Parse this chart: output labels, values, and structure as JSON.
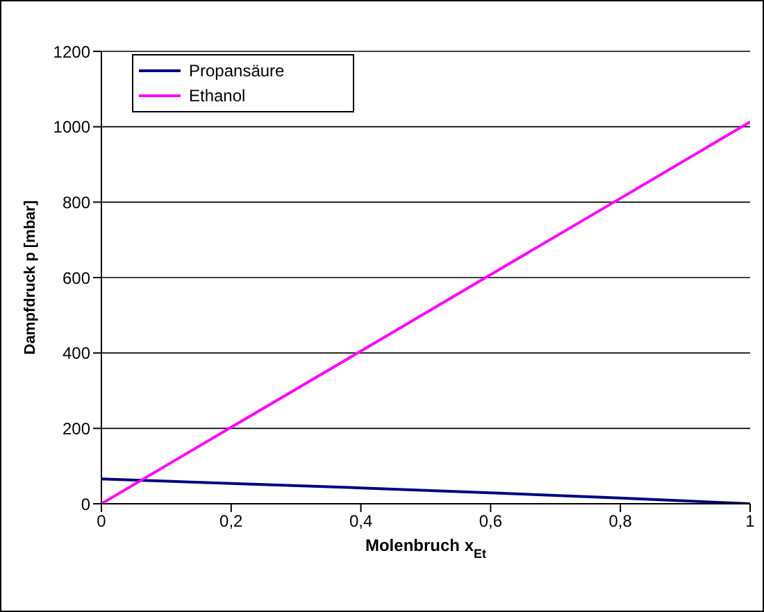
{
  "chart_data": {
    "type": "line",
    "xlabel": "Molenbruch x$_{Et}$",
    "ylabel": "Dampfdruck p [mbar]",
    "x": [
      0,
      0.2,
      0.4,
      0.6,
      0.8,
      1
    ],
    "series": [
      {
        "name": "Propansäure",
        "color": "#000080",
        "values": [
          66,
          54,
          42,
          29,
          15,
          0
        ]
      },
      {
        "name": "Ethanol",
        "color": "#ff00ff",
        "values": [
          0,
          203,
          405,
          608,
          810,
          1013
        ]
      }
    ],
    "xlim": [
      0,
      1
    ],
    "xticks": [
      0,
      {
        "value": 0.2,
        "label": "0,2"
      },
      {
        "value": 0.4,
        "label": "0,4"
      },
      {
        "value": 0.6,
        "label": "0,6"
      },
      {
        "value": 0.8,
        "label": "0,8"
      },
      1
    ],
    "ylim": [
      0,
      1200
    ],
    "yticks": [
      0,
      200,
      400,
      600,
      800,
      1000,
      1200
    ],
    "grid": "y",
    "legend": "top left",
    "marker": "none",
    "line_style": "solid"
  }
}
